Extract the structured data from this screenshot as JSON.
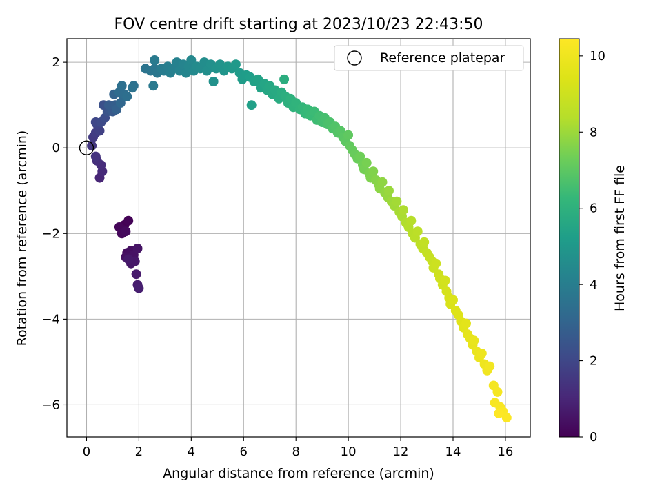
{
  "chart_data": {
    "type": "scatter",
    "title": "FOV centre drift starting at 2023/10/23 22:43:50",
    "xlabel": "Angular distance from reference (arcmin)",
    "ylabel": "Rotation from reference (arcmin)",
    "xlim": [
      -0.75,
      16.95
    ],
    "ylim": [
      -6.75,
      2.55
    ],
    "xticks": [
      0,
      2,
      4,
      6,
      8,
      10,
      12,
      14,
      16
    ],
    "yticks": [
      -6,
      -4,
      -2,
      0,
      2
    ],
    "xtick_labels": [
      "0",
      "2",
      "4",
      "6",
      "8",
      "10",
      "12",
      "14",
      "16"
    ],
    "ytick_labels": [
      "−6",
      "−4",
      "−2",
      "0",
      "2"
    ],
    "grid": true,
    "legend": {
      "position": "upper-right",
      "entries": [
        "Reference platepar"
      ]
    },
    "reference_point": {
      "x": 0,
      "y": 0,
      "marker": "open-circle"
    },
    "colorbar": {
      "label": "Hours from first FF file",
      "colormap": "viridis",
      "range": [
        0,
        10.45
      ],
      "ticks": [
        0,
        2,
        4,
        6,
        8,
        10
      ],
      "tick_labels": [
        "0",
        "2",
        "4",
        "6",
        "8",
        "10"
      ]
    },
    "points": [
      [
        1.45,
        -1.8,
        0.0
      ],
      [
        1.6,
        -1.7,
        0.05
      ],
      [
        1.35,
        -1.9,
        0.1
      ],
      [
        1.25,
        -1.85,
        0.15
      ],
      [
        1.35,
        -2.0,
        0.2
      ],
      [
        1.5,
        -1.95,
        0.25
      ],
      [
        1.55,
        -2.45,
        0.3
      ],
      [
        1.7,
        -2.4,
        0.35
      ],
      [
        1.5,
        -2.55,
        0.4
      ],
      [
        1.8,
        -2.5,
        0.45
      ],
      [
        1.95,
        -2.35,
        0.5
      ],
      [
        1.7,
        -2.7,
        0.55
      ],
      [
        1.85,
        -2.65,
        0.6
      ],
      [
        1.6,
        -2.6,
        0.65
      ],
      [
        1.9,
        -2.95,
        0.7
      ],
      [
        1.95,
        -3.2,
        0.75
      ],
      [
        2.0,
        -3.28,
        0.8
      ],
      [
        0.5,
        -0.7,
        1.0
      ],
      [
        0.6,
        -0.55,
        1.1
      ],
      [
        0.55,
        -0.4,
        1.2
      ],
      [
        0.4,
        -0.3,
        1.3
      ],
      [
        0.35,
        -0.2,
        1.4
      ],
      [
        0.2,
        0.05,
        1.5
      ],
      [
        0.25,
        0.25,
        1.6
      ],
      [
        0.35,
        0.35,
        1.7
      ],
      [
        0.5,
        0.4,
        1.8
      ],
      [
        0.4,
        0.55,
        1.9
      ],
      [
        0.35,
        0.6,
        2.0
      ],
      [
        0.55,
        0.6,
        2.1
      ],
      [
        0.7,
        0.7,
        2.2
      ],
      [
        0.65,
        1.0,
        2.3
      ],
      [
        0.8,
        0.85,
        2.4
      ],
      [
        0.9,
        0.9,
        2.5
      ],
      [
        1.0,
        0.85,
        2.6
      ],
      [
        0.85,
        1.0,
        2.7
      ],
      [
        1.1,
        1.0,
        2.8
      ],
      [
        1.15,
        0.9,
        2.9
      ],
      [
        1.05,
        1.25,
        3.0
      ],
      [
        1.3,
        1.05,
        3.1
      ],
      [
        1.4,
        1.2,
        3.2
      ],
      [
        1.25,
        1.3,
        3.3
      ],
      [
        1.45,
        1.25,
        3.35
      ],
      [
        1.55,
        1.2,
        3.4
      ],
      [
        1.35,
        1.45,
        3.45
      ],
      [
        1.8,
        1.45,
        3.5
      ],
      [
        1.75,
        1.4,
        3.55
      ],
      [
        2.25,
        1.85,
        3.6
      ],
      [
        2.45,
        1.8,
        3.65
      ],
      [
        2.6,
        1.85,
        3.7
      ],
      [
        2.7,
        1.75,
        3.75
      ],
      [
        2.55,
        1.45,
        3.8
      ],
      [
        2.6,
        2.05,
        3.85
      ],
      [
        2.85,
        1.85,
        3.9
      ],
      [
        2.95,
        1.8,
        3.95
      ],
      [
        3.1,
        1.9,
        4.0
      ],
      [
        3.2,
        1.75,
        4.05
      ],
      [
        3.3,
        1.85,
        4.1
      ],
      [
        3.45,
        2.0,
        4.15
      ],
      [
        3.55,
        1.8,
        4.2
      ],
      [
        3.7,
        1.95,
        4.25
      ],
      [
        3.8,
        1.75,
        4.3
      ],
      [
        3.9,
        1.9,
        4.35
      ],
      [
        4.0,
        2.05,
        4.4
      ],
      [
        4.1,
        1.8,
        4.45
      ],
      [
        4.2,
        1.9,
        4.5
      ],
      [
        4.35,
        1.85,
        4.55
      ],
      [
        4.5,
        2.0,
        4.6
      ],
      [
        4.6,
        1.8,
        4.65
      ],
      [
        4.75,
        1.95,
        4.7
      ],
      [
        4.85,
        1.55,
        4.75
      ],
      [
        4.95,
        1.85,
        4.8
      ],
      [
        5.1,
        1.95,
        4.85
      ],
      [
        5.25,
        1.8,
        4.9
      ],
      [
        5.4,
        1.9,
        4.95
      ],
      [
        5.55,
        1.85,
        5.0
      ],
      [
        5.7,
        1.95,
        5.05
      ],
      [
        5.85,
        1.75,
        5.1
      ],
      [
        5.95,
        1.6,
        5.15
      ],
      [
        6.1,
        1.7,
        5.2
      ],
      [
        6.25,
        1.65,
        5.25
      ],
      [
        6.3,
        1.0,
        5.3
      ],
      [
        6.4,
        1.55,
        5.35
      ],
      [
        6.55,
        1.6,
        5.4
      ],
      [
        6.65,
        1.4,
        5.45
      ],
      [
        6.8,
        1.5,
        5.5
      ],
      [
        6.9,
        1.35,
        5.55
      ],
      [
        7.0,
        1.45,
        5.6
      ],
      [
        7.1,
        1.25,
        5.65
      ],
      [
        7.2,
        1.35,
        5.7
      ],
      [
        7.35,
        1.15,
        5.75
      ],
      [
        7.45,
        1.3,
        5.8
      ],
      [
        7.55,
        1.6,
        5.85
      ],
      [
        7.6,
        1.2,
        5.9
      ],
      [
        7.7,
        1.05,
        5.95
      ],
      [
        7.8,
        1.15,
        6.0
      ],
      [
        7.9,
        0.95,
        6.05
      ],
      [
        8.0,
        1.05,
        6.1
      ],
      [
        8.15,
        0.9,
        6.15
      ],
      [
        8.25,
        0.95,
        6.2
      ],
      [
        8.35,
        0.8,
        6.25
      ],
      [
        8.45,
        0.9,
        6.3
      ],
      [
        8.55,
        0.75,
        6.35
      ],
      [
        8.7,
        0.85,
        6.4
      ],
      [
        8.8,
        0.65,
        6.45
      ],
      [
        8.9,
        0.75,
        6.5
      ],
      [
        9.0,
        0.6,
        6.55
      ],
      [
        9.1,
        0.7,
        6.6
      ],
      [
        9.2,
        0.55,
        6.65
      ],
      [
        9.3,
        0.6,
        6.7
      ],
      [
        9.4,
        0.45,
        6.75
      ],
      [
        9.5,
        0.5,
        6.8
      ],
      [
        9.6,
        0.35,
        6.85
      ],
      [
        9.7,
        0.4,
        6.9
      ],
      [
        9.8,
        0.25,
        6.95
      ],
      [
        9.9,
        0.15,
        7.0
      ],
      [
        10.0,
        0.3,
        7.05
      ],
      [
        10.05,
        0.05,
        7.1
      ],
      [
        10.15,
        -0.05,
        7.15
      ],
      [
        10.25,
        -0.15,
        7.2
      ],
      [
        10.35,
        -0.25,
        7.25
      ],
      [
        10.45,
        -0.2,
        7.3
      ],
      [
        10.55,
        -0.4,
        7.35
      ],
      [
        10.6,
        -0.5,
        7.4
      ],
      [
        10.7,
        -0.35,
        7.45
      ],
      [
        10.8,
        -0.6,
        7.5
      ],
      [
        10.85,
        -0.7,
        7.55
      ],
      [
        10.95,
        -0.55,
        7.6
      ],
      [
        11.05,
        -0.75,
        7.65
      ],
      [
        11.15,
        -0.85,
        7.7
      ],
      [
        11.2,
        -0.95,
        7.75
      ],
      [
        11.3,
        -0.8,
        7.8
      ],
      [
        11.4,
        -1.05,
        7.85
      ],
      [
        11.5,
        -1.15,
        7.9
      ],
      [
        11.55,
        -1.0,
        7.95
      ],
      [
        11.65,
        -1.25,
        8.0
      ],
      [
        11.75,
        -1.35,
        8.05
      ],
      [
        11.85,
        -1.25,
        8.1
      ],
      [
        11.95,
        -1.5,
        8.15
      ],
      [
        12.05,
        -1.6,
        8.2
      ],
      [
        12.1,
        -1.45,
        8.25
      ],
      [
        12.2,
        -1.75,
        8.3
      ],
      [
        12.3,
        -1.85,
        8.35
      ],
      [
        12.4,
        -1.7,
        8.4
      ],
      [
        12.45,
        -2.0,
        8.45
      ],
      [
        12.55,
        -2.1,
        8.5
      ],
      [
        12.65,
        -1.95,
        8.55
      ],
      [
        12.75,
        -2.25,
        8.6
      ],
      [
        12.85,
        -2.35,
        8.65
      ],
      [
        12.9,
        -2.2,
        8.7
      ],
      [
        13.0,
        -2.45,
        8.75
      ],
      [
        13.1,
        -2.55,
        8.8
      ],
      [
        13.2,
        -2.65,
        8.85
      ],
      [
        13.25,
        -2.8,
        8.9
      ],
      [
        13.35,
        -2.7,
        8.95
      ],
      [
        13.45,
        -2.95,
        9.0
      ],
      [
        13.5,
        -3.05,
        9.05
      ],
      [
        13.6,
        -3.2,
        9.1
      ],
      [
        13.7,
        -3.1,
        9.15
      ],
      [
        13.75,
        -3.35,
        9.2
      ],
      [
        13.85,
        -3.5,
        9.25
      ],
      [
        13.9,
        -3.65,
        9.3
      ],
      [
        14.0,
        -3.55,
        9.35
      ],
      [
        14.1,
        -3.8,
        9.4
      ],
      [
        14.2,
        -3.9,
        9.45
      ],
      [
        14.3,
        -4.05,
        9.5
      ],
      [
        14.4,
        -4.2,
        9.55
      ],
      [
        14.5,
        -4.1,
        9.6
      ],
      [
        14.55,
        -4.35,
        9.65
      ],
      [
        14.65,
        -4.45,
        9.7
      ],
      [
        14.75,
        -4.6,
        9.75
      ],
      [
        14.8,
        -4.5,
        9.8
      ],
      [
        14.9,
        -4.75,
        9.85
      ],
      [
        15.0,
        -4.9,
        9.9
      ],
      [
        15.1,
        -4.8,
        9.95
      ],
      [
        15.2,
        -5.05,
        10.0
      ],
      [
        15.3,
        -5.2,
        10.05
      ],
      [
        15.4,
        -5.1,
        10.1
      ],
      [
        15.55,
        -5.55,
        10.15
      ],
      [
        15.7,
        -5.7,
        10.2
      ],
      [
        15.6,
        -5.95,
        10.25
      ],
      [
        15.8,
        -6.05,
        10.3
      ],
      [
        15.9,
        -6.15,
        10.35
      ],
      [
        16.05,
        -6.3,
        10.4
      ],
      [
        15.75,
        -6.2,
        10.45
      ]
    ]
  }
}
